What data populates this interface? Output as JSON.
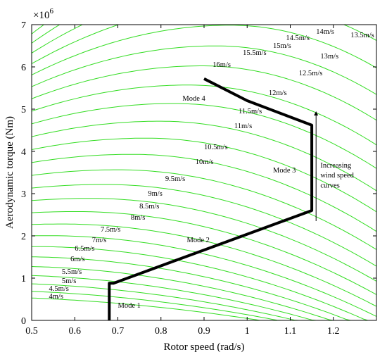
{
  "chart_data": {
    "type": "line",
    "xlabel": "Rotor speed (rad/s)",
    "ylabel": "Aerodynamic torque (Nm)",
    "y_exponent_label": "×10",
    "y_exponent_power": "6",
    "xlim": [
      0.5,
      1.3
    ],
    "ylim": [
      0,
      7
    ],
    "x_ticks": [
      "0.5",
      "0.6",
      "0.7",
      "0.8",
      "0.9",
      "1",
      "1.1",
      "1.2"
    ],
    "y_ticks": [
      "0",
      "1",
      "2",
      "3",
      "4",
      "5",
      "6",
      "7"
    ],
    "x_tick_values": [
      0.5,
      0.6,
      0.7,
      0.8,
      0.9,
      1.0,
      1.1,
      1.2
    ],
    "y_tick_values": [
      0,
      1,
      2,
      3,
      4,
      5,
      6,
      7
    ],
    "grid": false,
    "curve_color": "#33dd22",
    "trajectory_color": "#000000",
    "wind_curves": [
      {
        "label": "4m/s",
        "v": 4.0,
        "label_x": 0.54,
        "label_y": 0.52
      },
      {
        "label": "4.5m/s",
        "v": 4.5,
        "label_x": 0.54,
        "label_y": 0.7
      },
      {
        "label": "5m/s",
        "v": 5.0,
        "label_x": 0.57,
        "label_y": 0.88
      },
      {
        "label": "5.5m/s",
        "v": 5.5,
        "label_x": 0.57,
        "label_y": 1.1
      },
      {
        "label": "6m/s",
        "v": 6.0,
        "label_x": 0.59,
        "label_y": 1.4
      },
      {
        "label": "6.5m/s",
        "v": 6.5,
        "label_x": 0.6,
        "label_y": 1.65
      },
      {
        "label": "7m/s",
        "v": 7.0,
        "label_x": 0.64,
        "label_y": 1.85
      },
      {
        "label": "7.5m/s",
        "v": 7.5,
        "label_x": 0.66,
        "label_y": 2.1
      },
      {
        "label": "8m/s",
        "v": 8.0,
        "label_x": 0.73,
        "label_y": 2.38
      },
      {
        "label": "8.5m/s",
        "v": 8.5,
        "label_x": 0.75,
        "label_y": 2.65
      },
      {
        "label": "9m/s",
        "v": 9.0,
        "label_x": 0.77,
        "label_y": 2.95
      },
      {
        "label": "9.5m/s",
        "v": 9.5,
        "label_x": 0.81,
        "label_y": 3.3
      },
      {
        "label": "10m/s",
        "v": 10.0,
        "label_x": 0.88,
        "label_y": 3.7
      },
      {
        "label": "10.5m/s",
        "v": 10.5,
        "label_x": 0.9,
        "label_y": 4.05
      },
      {
        "label": "11m/s",
        "v": 11.0,
        "label_x": 0.97,
        "label_y": 4.55
      },
      {
        "label": "11.5m/s",
        "v": 11.5,
        "label_x": 0.98,
        "label_y": 4.9
      },
      {
        "label": "12m/s",
        "v": 12.0,
        "label_x": 1.05,
        "label_y": 5.33
      },
      {
        "label": "12.5m/s",
        "v": 12.5,
        "label_x": 1.12,
        "label_y": 5.8
      },
      {
        "label": "13m/s",
        "v": 13.0,
        "label_x": 1.17,
        "label_y": 6.2
      },
      {
        "label": "13.5m/s",
        "v": 13.5,
        "label_x": 1.24,
        "label_y": 6.7
      },
      {
        "label": "14m/s",
        "v": 14.0,
        "label_x": 1.16,
        "label_y": 6.78
      },
      {
        "label": "14.5m/s",
        "v": 14.5,
        "label_x": 1.09,
        "label_y": 6.63
      },
      {
        "label": "15m/s",
        "v": 15.0,
        "label_x": 1.06,
        "label_y": 6.45
      },
      {
        "label": "15.5m/s",
        "v": 15.5,
        "label_x": 0.99,
        "label_y": 6.28
      },
      {
        "label": "16m/s",
        "v": 16.0,
        "label_x": 0.92,
        "label_y": 6.0
      }
    ],
    "trajectory": {
      "x": [
        0.68,
        0.68,
        0.69,
        1.15,
        1.15,
        1.0,
        0.9
      ],
      "y": [
        0.0,
        0.88,
        0.88,
        2.6,
        4.62,
        5.2,
        5.72
      ]
    },
    "annotations": [
      {
        "text": "Mode 1",
        "x": 0.7,
        "y": 0.3,
        "role": "mode"
      },
      {
        "text": "Mode 2",
        "x": 0.86,
        "y": 1.85,
        "role": "mode"
      },
      {
        "text": "Mode 3",
        "x": 1.06,
        "y": 3.5,
        "role": "mode"
      },
      {
        "text": "Mode 4",
        "x": 0.85,
        "y": 5.2,
        "role": "mode"
      },
      {
        "text": "Increasing",
        "x": 1.17,
        "y": 3.62,
        "role": "note"
      },
      {
        "text": "wind speed",
        "x": 1.17,
        "y": 3.38,
        "role": "note"
      },
      {
        "text": "curves",
        "x": 1.17,
        "y": 3.14,
        "role": "note"
      }
    ],
    "arrow": {
      "x": 1.16,
      "y_from": 2.35,
      "y_to": 4.9
    }
  }
}
